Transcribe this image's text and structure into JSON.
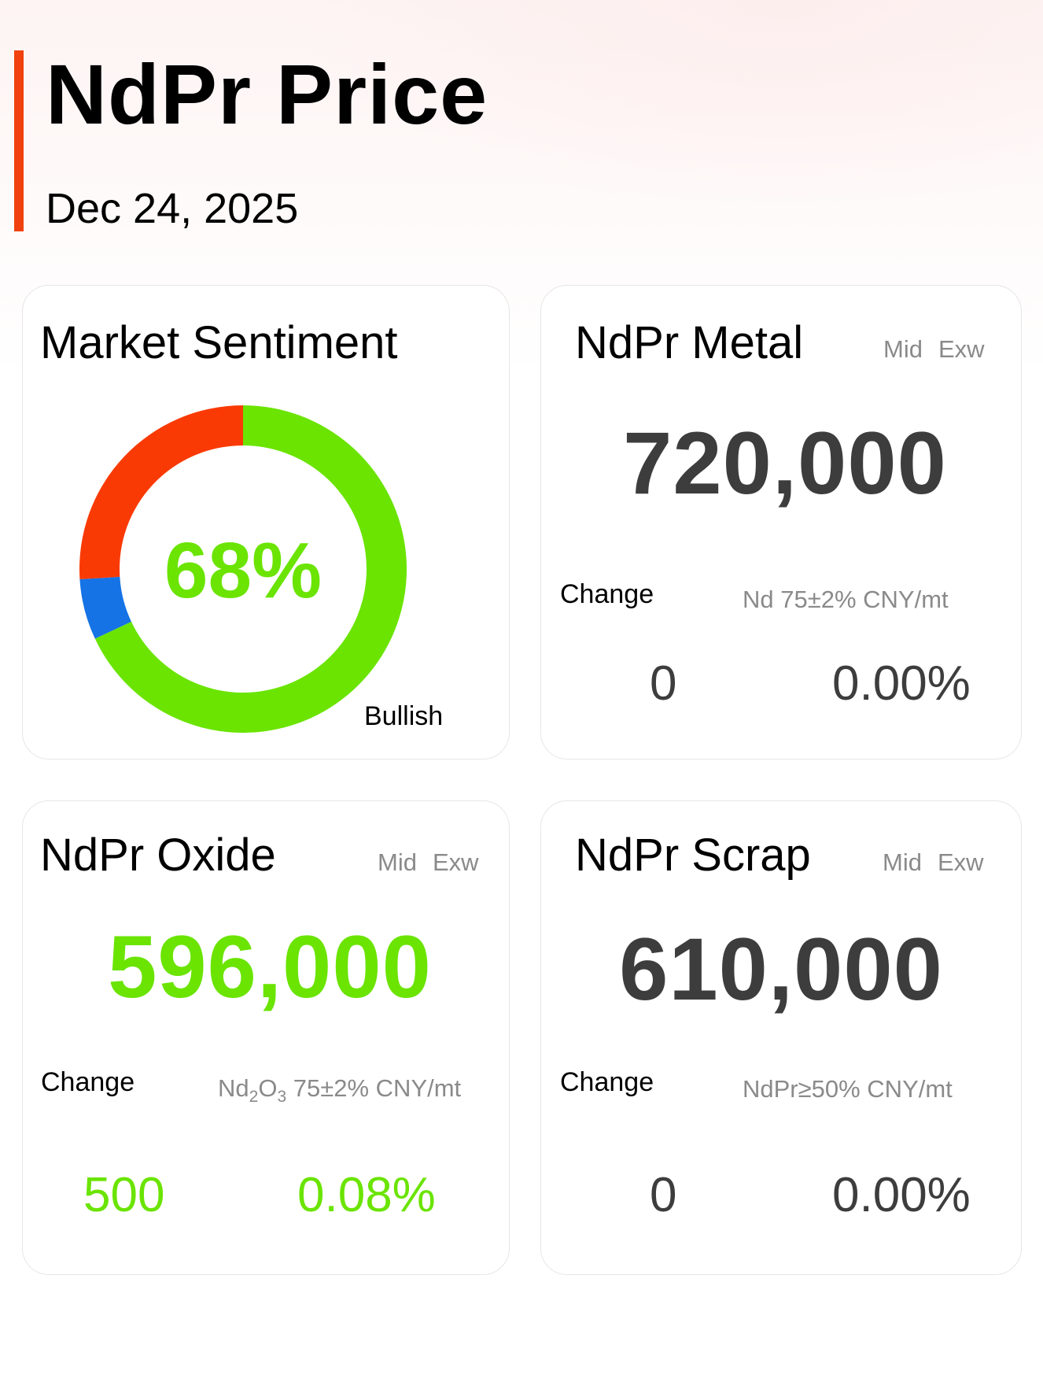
{
  "header": {
    "title": "NdPr Price",
    "date": "Dec 24, 2025"
  },
  "sentiment": {
    "title": "Market Sentiment",
    "percent_label": "68%",
    "label": "Bullish",
    "segments": [
      {
        "name": "bullish",
        "percent": 68,
        "color": "#6ae400"
      },
      {
        "name": "neutral",
        "percent": 6,
        "color": "#1573e6"
      },
      {
        "name": "bearish",
        "percent": 26,
        "color": "#fa3a04"
      }
    ]
  },
  "cards": {
    "metal": {
      "title": "NdPr Metal",
      "tag_mid": "Mid",
      "tag_exw": "Exw",
      "price": "720,000",
      "change_label": "Change",
      "spec": "Nd 75±2% CNY/mt",
      "change_value": "0",
      "change_percent": "0.00%"
    },
    "oxide": {
      "title": "NdPr Oxide",
      "tag_mid": "Mid",
      "tag_exw": "Exw",
      "price": "596,000",
      "change_label": "Change",
      "spec_prefix": "Nd",
      "spec_sub1": "2",
      "spec_mid": "O",
      "spec_sub2": "3",
      "spec_suffix": " 75±2% CNY/mt",
      "change_value": "500",
      "change_percent": "0.08%"
    },
    "scrap": {
      "title": "NdPr Scrap",
      "tag_mid": "Mid",
      "tag_exw": "Exw",
      "price": "610,000",
      "change_label": "Change",
      "spec": "NdPr≥50% CNY/mt",
      "change_value": "0",
      "change_percent": "0.00%"
    }
  },
  "colors": {
    "accent": "#f0410e",
    "positive": "#6ae400",
    "neutral_text": "#3d3d3d"
  }
}
